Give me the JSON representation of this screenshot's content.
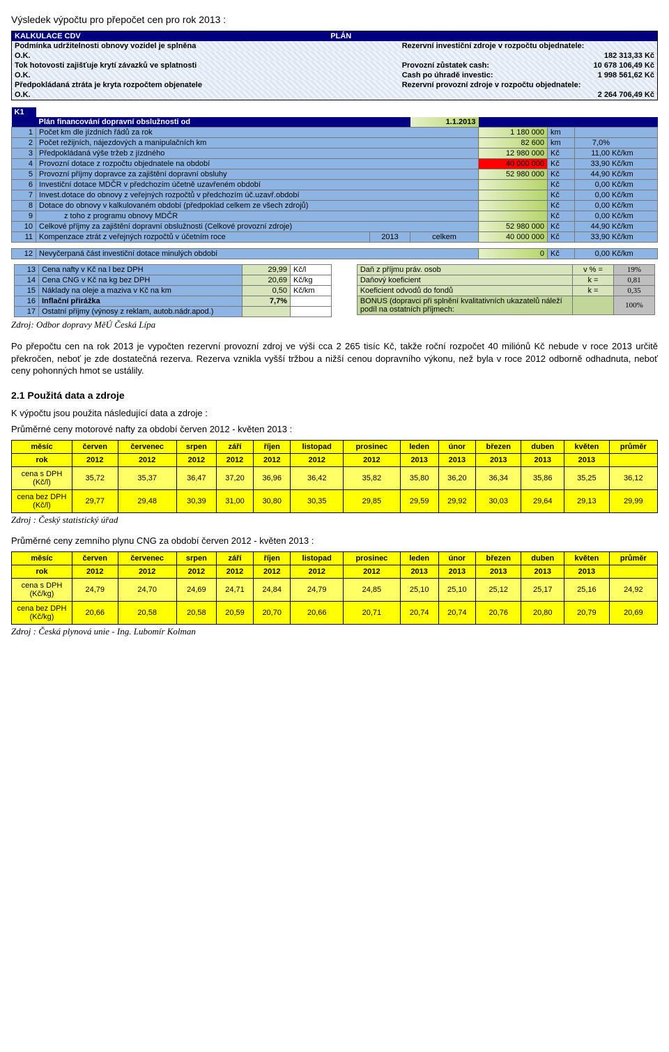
{
  "page_title": "Výsledek výpočtu pro přepočet cen pro rok 2013 :",
  "cdv": {
    "header_left": "KALKULACE CDV",
    "header_right": "PLÁN",
    "r1_left": "Podmínka udržitelnosti obnovy vozidel je splněna",
    "r1_right": "Rezervní investiční zdroje v rozpočtu objednatele:",
    "r2_left": "O.K.",
    "r2_right": "182 313,33 Kč",
    "r3_left": "Tok hotovosti zajišťuje krytí závazků ve splatnosti",
    "r3_mid": "Provozní zůstatek cash:",
    "r3_right": "10 678 106,49 Kč",
    "r4_left": "O.K.",
    "r4_mid": "Cash po úhradě investic:",
    "r4_right": "1 998 561,62 Kč",
    "r5_left": "Předpokládaná ztráta je kryta rozpočtem objenatele",
    "r5_right": "Rezervní provozní zdroje v rozpočtu objednatele:",
    "r6_left": "O.K.",
    "r6_right": "2 264 706,49 Kč"
  },
  "k1": {
    "label": "K1",
    "title": "Plán financování dopravní obslužnosti od",
    "date": "1.1.2013",
    "rows": [
      {
        "n": "1",
        "t": "Počet km dle jízdních řádů za rok",
        "v": "1 180 000",
        "u": "km",
        "r": "",
        "ru": ""
      },
      {
        "n": "2",
        "t": "Počet režijních, nájezdových a manipulačních km",
        "v": "82 600",
        "u": "km",
        "r": "7,0%",
        "ru": ""
      },
      {
        "n": "3",
        "t": "Předpokládaná výše tržeb z jízdného",
        "v": "12 980 000",
        "u": "Kč",
        "r": "11,00",
        "ru": "Kč/km"
      },
      {
        "n": "4",
        "t": "Provozní dotace z rozpočtu objednatele na období",
        "v": "40 000 000",
        "u": "Kč",
        "r": "33,90",
        "ru": "Kč/km",
        "red": true
      },
      {
        "n": "5",
        "t": "Provozní příjmy dopravce za zajištění dopravní obsluhy",
        "v": "52 980 000",
        "u": "Kč",
        "r": "44,90",
        "ru": "Kč/km"
      },
      {
        "n": "6",
        "t": "Investiční dotace MDČR v předchozím účetně uzavřeném období",
        "v": "",
        "u": "Kč",
        "r": "0,00",
        "ru": "Kč/km"
      },
      {
        "n": "7",
        "t": "Invest.dotace do obnovy z veřejných rozpočtů v předchozím úč.uzavř.období",
        "v": "",
        "u": "Kč",
        "r": "0,00",
        "ru": "Kč/km"
      },
      {
        "n": "8",
        "t": "Dotace do obnovy v kalkulovaném období (předpoklad celkem ze všech zdrojů)",
        "v": "",
        "u": "Kč",
        "r": "0,00",
        "ru": "Kč/km"
      },
      {
        "n": "9",
        "t": "z toho z programu obnovy MDČR",
        "v": "",
        "u": "Kč",
        "r": "0,00",
        "ru": "Kč/km",
        "indent": true
      },
      {
        "n": "10",
        "t": "Celkové příjmy za zajištění dopravní obslužnosti (Celkové provozní zdroje)",
        "v": "52 980 000",
        "u": "Kč",
        "r": "44,90",
        "ru": "Kč/km"
      },
      {
        "n": "11",
        "t": "Kompenzace ztrát z veřejných rozpočtů v účetním roce",
        "y": "2013",
        "y2": "celkem",
        "v": "40 000 000",
        "u": "Kč",
        "r": "33,90",
        "ru": "Kč/km"
      }
    ],
    "row12": {
      "n": "12",
      "t": "Nevyčerpaná část investiční dotace minulých období",
      "v": "0",
      "u": "Kč",
      "r": "0,00",
      "ru": "Kč/km"
    },
    "left": [
      {
        "n": "13",
        "t": "Cena nafty v Kč na l bez DPH",
        "v": "29,99",
        "u": "Kč/l"
      },
      {
        "n": "14",
        "t": "Cena CNG v Kč na kg bez DPH",
        "v": "20,69",
        "u": "Kč/kg"
      },
      {
        "n": "15",
        "t": "Náklady na oleje a maziva v Kč na km",
        "v": "0,50",
        "u": "Kč/km"
      },
      {
        "n": "16",
        "t": "Inflační přirážka",
        "v": "7,7%",
        "u": "",
        "b": true
      },
      {
        "n": "17",
        "t": "Ostatní příjmy (výnosy z reklam, autob.nádr.apod.)",
        "v": "",
        "u": ""
      }
    ],
    "right": [
      {
        "t": "Daň z příjmu práv. osob",
        "k": "v % =",
        "v": "19%"
      },
      {
        "t": "Daňový koeficient",
        "k": "k =",
        "v": "0,81"
      },
      {
        "t": "Koeficient odvodů do fondů",
        "k": "k =",
        "v": "0,35"
      },
      {
        "t": "BONUS (dopravci při splnění kvalitativních ukazatelů náleží podíl na ostatních příjmech:",
        "k": "",
        "v": "100%"
      }
    ]
  },
  "source1": "Zdroj: Odbor dopravy MěÚ Česká Lípa",
  "para1": "Po přepočtu cen na rok 2013 je vypočten rezervní provozní zdroj ve výši cca 2 265 tisíc Kč, takže roční rozpočet 40 miliónů Kč nebude v roce 2013 určitě překročen, neboť je zde dostatečná rezerva. Rezerva vznikla vyšší tržbou a nižší cenou dopravního výkonu, než byla v roce 2012 odborně odhadnuta, neboť ceny pohonných hmot se ustálily.",
  "sec21": "2.1 Použitá data a zdroje",
  "line_intro": "K výpočtu jsou použita následující data a zdroje :",
  "nafta_title": "Průměrné ceny motorové nafty za období červen 2012 - květen 2013 :",
  "cng_title": "Průměrné ceny zemního plynu CNG za období červen 2012 - květen 2013 :",
  "months": [
    "červen",
    "červenec",
    "srpen",
    "září",
    "říjen",
    "listopad",
    "prosinec",
    "leden",
    "únor",
    "březen",
    "duben",
    "květen",
    "průměr"
  ],
  "years": [
    "2012",
    "2012",
    "2012",
    "2012",
    "2012",
    "2012",
    "2012",
    "2013",
    "2013",
    "2013",
    "2013",
    "2013",
    ""
  ],
  "hdr_mesic": "měsíc",
  "hdr_rok": "rok",
  "nafta": {
    "r1_label": "cena s DPH (Kč/l)",
    "r1": [
      "35,72",
      "35,37",
      "36,47",
      "37,20",
      "36,96",
      "36,42",
      "35,82",
      "35,80",
      "36,20",
      "36,34",
      "35,86",
      "35,25",
      "36,12"
    ],
    "r2_label": "cena bez DPH (Kč/l)",
    "r2": [
      "29,77",
      "29,48",
      "30,39",
      "31,00",
      "30,80",
      "30,35",
      "29,85",
      "29,59",
      "29,92",
      "30,03",
      "29,64",
      "29,13",
      "29,99"
    ]
  },
  "source_nafta": "Zdroj : Český statistický úřad",
  "cng": {
    "r1_label": "cena s DPH (Kč/kg)",
    "r1": [
      "24,79",
      "24,70",
      "24,69",
      "24,71",
      "24,84",
      "24,79",
      "24,85",
      "25,10",
      "25,10",
      "25,12",
      "25,17",
      "25,16",
      "24,92"
    ],
    "r2_label": "cena bez DPH (Kč/kg)",
    "r2": [
      "20,66",
      "20,58",
      "20,58",
      "20,59",
      "20,70",
      "20,66",
      "20,71",
      "20,74",
      "20,74",
      "20,76",
      "20,80",
      "20,79",
      "20,69"
    ]
  },
  "source_cng": "Zdroj : Česká plynová unie - Ing. Lubomír Kolman"
}
